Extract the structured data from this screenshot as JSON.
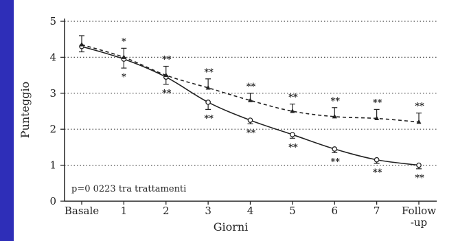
{
  "chart_data": {
    "type": "line",
    "title": "",
    "xlabel": "Giorni",
    "ylabel": "Punteggio",
    "categories": [
      "Basale",
      "1",
      "2",
      "3",
      "4",
      "5",
      "6",
      "7",
      "Follow-up"
    ],
    "category_lines": [
      [
        "Basale"
      ],
      [
        "1"
      ],
      [
        "2"
      ],
      [
        "3"
      ],
      [
        "4"
      ],
      [
        "5"
      ],
      [
        "6"
      ],
      [
        "7"
      ],
      [
        "Follow",
        "-up"
      ]
    ],
    "ylim": [
      0,
      5
    ],
    "yticks": [
      "0",
      "1",
      "2",
      "3",
      "4",
      "5"
    ],
    "grid": "horizontal dotted",
    "series": [
      {
        "style": "solid",
        "marker": "circle",
        "values": [
          4.3,
          3.95,
          3.45,
          2.75,
          2.25,
          1.85,
          1.45,
          1.15,
          1.0
        ],
        "error": [
          0.15,
          0.25,
          0.2,
          0.2,
          0.1,
          0.1,
          0.1,
          0.1,
          0.1
        ],
        "annotations": [
          "",
          "*",
          "**",
          "**",
          "**",
          "**",
          "**",
          "**",
          "**"
        ]
      },
      {
        "style": "dashed",
        "marker": "triangle",
        "values": [
          4.35,
          4.0,
          3.5,
          3.15,
          2.8,
          2.5,
          2.35,
          2.3,
          2.2
        ],
        "error": [
          0.25,
          0.25,
          0.25,
          0.25,
          0.2,
          0.2,
          0.25,
          0.25,
          0.25
        ],
        "annotations": [
          "",
          "*",
          "**",
          "**",
          "**",
          "**",
          "**",
          "**",
          "**"
        ]
      }
    ],
    "note": "p=0 0223 tra trattamenti"
  }
}
